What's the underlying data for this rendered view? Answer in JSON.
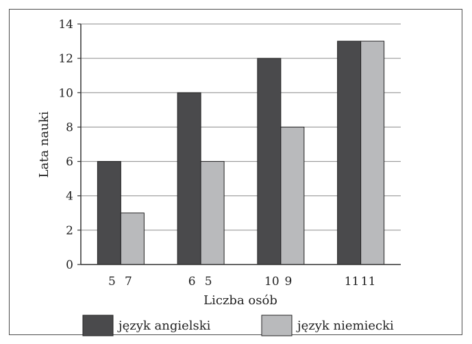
{
  "chart_data": {
    "type": "bar",
    "xlabel": "Liczba osób",
    "ylabel": "Lata nauki",
    "ylim": [
      0,
      14
    ],
    "yticks": [
      0,
      2,
      4,
      6,
      8,
      10,
      12,
      14
    ],
    "grid": "horizontal",
    "legend_position": "bottom",
    "series": [
      {
        "name": "język angielski",
        "color": "#4a4a4c",
        "values": [
          6,
          10,
          12,
          13
        ],
        "count_labels": [
          "5",
          "6",
          "10",
          "11"
        ]
      },
      {
        "name": "język niemiecki",
        "color": "#b9babc",
        "values": [
          3,
          6,
          8,
          13
        ],
        "count_labels": [
          "7",
          "5",
          "9",
          "11"
        ]
      }
    ]
  }
}
